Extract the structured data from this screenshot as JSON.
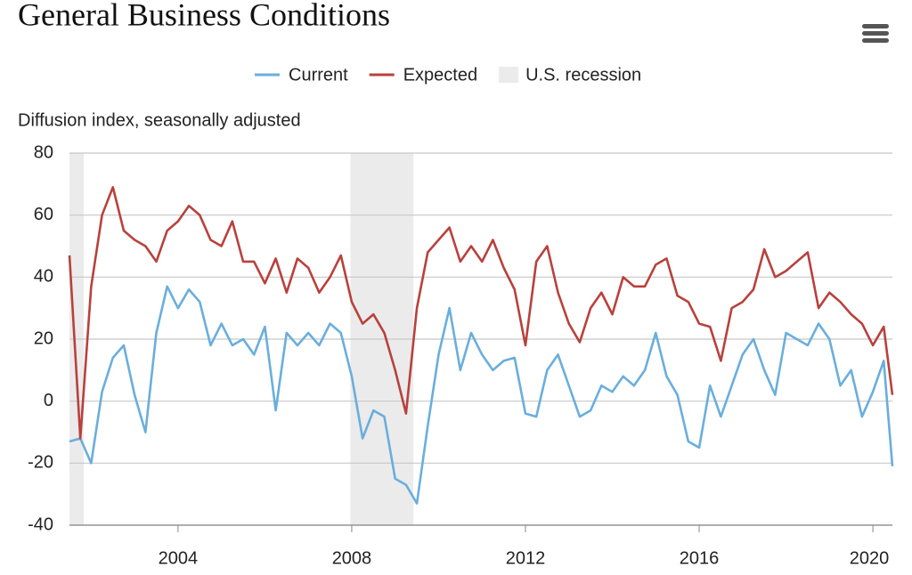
{
  "chart_data": {
    "type": "line",
    "title": "General Business Conditions",
    "y_label": "Diffusion index, seasonally adjusted",
    "x": [
      2001.5,
      2001.75,
      2002,
      2002.25,
      2002.5,
      2002.75,
      2003,
      2003.25,
      2003.5,
      2003.75,
      2004,
      2004.25,
      2004.5,
      2004.75,
      2005,
      2005.25,
      2005.5,
      2005.75,
      2006,
      2006.25,
      2006.5,
      2006.75,
      2007,
      2007.25,
      2007.5,
      2007.75,
      2008,
      2008.25,
      2008.5,
      2008.75,
      2009,
      2009.25,
      2009.5,
      2009.75,
      2010,
      2010.25,
      2010.5,
      2010.75,
      2011,
      2011.25,
      2011.5,
      2011.75,
      2012,
      2012.25,
      2012.5,
      2012.75,
      2013,
      2013.25,
      2013.5,
      2013.75,
      2014,
      2014.25,
      2014.5,
      2014.75,
      2015,
      2015.25,
      2015.5,
      2015.75,
      2016,
      2016.25,
      2016.5,
      2016.75,
      2017,
      2017.25,
      2017.5,
      2017.75,
      2018,
      2018.25,
      2018.5,
      2018.75,
      2019,
      2019.25,
      2019.5,
      2019.75,
      2020,
      2020.25,
      2020.45
    ],
    "series": [
      {
        "name": "Current",
        "color": "#6aaedc",
        "values": [
          -13,
          -12,
          -20,
          3,
          14,
          18,
          2,
          -10,
          22,
          37,
          30,
          36,
          32,
          18,
          25,
          18,
          20,
          15,
          24,
          -3,
          22,
          18,
          22,
          18,
          25,
          22,
          8,
          -12,
          -3,
          -5,
          -25,
          -27,
          -33,
          -8,
          15,
          30,
          10,
          22,
          15,
          10,
          13,
          14,
          -4,
          -5,
          10,
          15,
          5,
          -5,
          -3,
          5,
          3,
          8,
          5,
          10,
          22,
          8,
          2,
          -13,
          -15,
          5,
          -5,
          5,
          15,
          20,
          10,
          2,
          22,
          20,
          18,
          25,
          20,
          5,
          10,
          -5,
          3,
          13,
          -21
        ]
      },
      {
        "name": "Expected",
        "color": "#b8413d",
        "values": [
          47,
          -12,
          37,
          60,
          69,
          55,
          52,
          50,
          45,
          55,
          58,
          63,
          60,
          52,
          50,
          58,
          45,
          45,
          38,
          46,
          35,
          46,
          43,
          35,
          40,
          47,
          32,
          25,
          28,
          22,
          10,
          -4,
          30,
          48,
          52,
          56,
          45,
          50,
          45,
          52,
          43,
          36,
          18,
          45,
          50,
          35,
          25,
          19,
          30,
          35,
          28,
          40,
          37,
          37,
          44,
          46,
          34,
          32,
          25,
          24,
          13,
          30,
          32,
          36,
          49,
          40,
          42,
          45,
          48,
          30,
          35,
          32,
          28,
          25,
          18,
          24,
          2
        ]
      }
    ],
    "recession_name": "U.S. recession",
    "recession_color": "#ebebeb",
    "recessions": [
      [
        2001.5,
        2001.83
      ],
      [
        2007.97,
        2009.42
      ]
    ],
    "xlim": [
      2001.5,
      2020.45
    ],
    "xticks": [
      2004,
      2008,
      2012,
      2016,
      2020
    ],
    "ylim": [
      -40,
      80
    ],
    "yticks": [
      -40,
      -20,
      0,
      20,
      40,
      60,
      80
    ],
    "grid": true
  }
}
